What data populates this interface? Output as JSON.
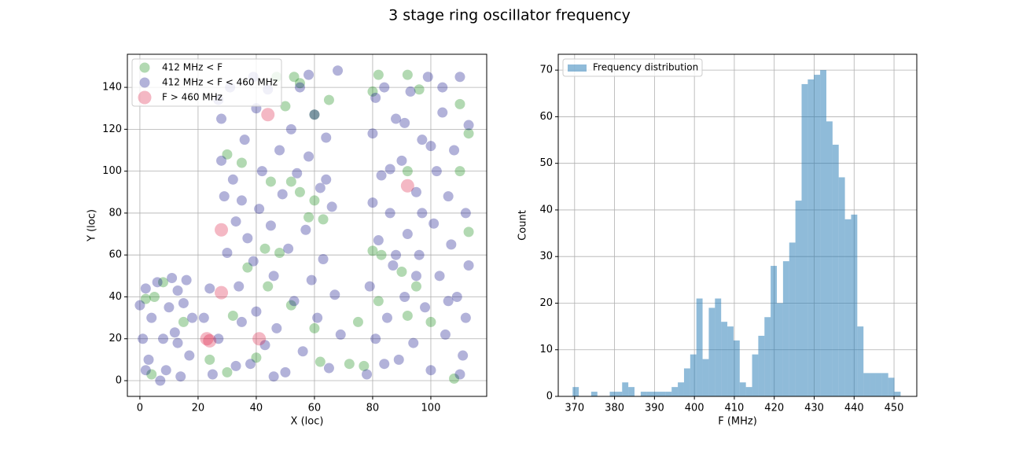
{
  "title": "3 stage ring oscillator frequency",
  "chart_data": [
    {
      "type": "scatter",
      "xlabel": "X (loc)",
      "ylabel": "Y (loc)",
      "xlim": [
        -4.3,
        119.2
      ],
      "ylim": [
        -7.5,
        155.8
      ],
      "xticks": [
        0,
        20,
        40,
        60,
        80,
        100
      ],
      "yticks": [
        0,
        20,
        40,
        60,
        80,
        100,
        120,
        140
      ],
      "grid": true,
      "legend": "upper left",
      "series": [
        {
          "name": "412 MHz < F",
          "color": "green",
          "alpha": 0.3,
          "size": 6.5,
          "x": [
            2,
            5,
            8,
            30,
            35,
            47,
            50,
            53,
            55,
            60,
            65,
            80,
            82,
            92,
            96,
            110,
            113,
            113,
            110,
            45,
            52,
            55,
            58,
            60,
            63,
            80,
            83,
            90,
            92,
            95,
            92,
            100,
            108,
            82,
            60,
            62,
            75,
            72,
            77,
            43,
            48,
            37,
            15,
            24,
            32,
            44,
            52,
            40,
            30,
            4
          ],
          "y": [
            39,
            40,
            47,
            108,
            104,
            145,
            131,
            145,
            142,
            127,
            134,
            138,
            146,
            146,
            139,
            132,
            118,
            71,
            100,
            95,
            95,
            90,
            78,
            86,
            77,
            62,
            60,
            52,
            100,
            45,
            31,
            28,
            1,
            38,
            25,
            9,
            28,
            8,
            7,
            63,
            61,
            54,
            28,
            10,
            31,
            45,
            36,
            11,
            4,
            3
          ]
        },
        {
          "name": "412 MHz < F < 460 MHz",
          "color": "navy",
          "alpha": 0.3,
          "size": 6.5,
          "x": [
            0,
            1,
            2,
            3,
            4,
            6,
            8,
            10,
            11,
            12,
            13,
            14,
            15,
            17,
            18,
            7,
            2,
            16,
            9,
            13,
            22,
            24,
            25,
            27,
            28,
            28,
            29,
            30,
            31,
            32,
            33,
            34,
            35,
            36,
            37,
            38,
            39,
            40,
            40,
            41,
            42,
            43,
            44,
            45,
            46,
            47,
            48,
            49,
            50,
            51,
            52,
            53,
            54,
            55,
            56,
            57,
            58,
            59,
            60,
            61,
            62,
            63,
            64,
            65,
            66,
            67,
            68,
            69,
            27,
            33,
            46,
            39,
            58,
            64,
            35,
            78,
            79,
            80,
            80,
            81,
            82,
            83,
            84,
            85,
            86,
            87,
            88,
            89,
            90,
            91,
            92,
            93,
            94,
            95,
            96,
            97,
            98,
            99,
            100,
            101,
            102,
            103,
            104,
            105,
            106,
            107,
            108,
            109,
            110,
            111,
            112,
            113,
            113,
            112,
            110,
            104,
            97,
            91,
            86,
            84,
            95,
            100,
            106,
            88,
            81
          ],
          "y": [
            36,
            20,
            44,
            10,
            30,
            47,
            20,
            35,
            49,
            23,
            43,
            2,
            37,
            12,
            30,
            0,
            5,
            48,
            5,
            18,
            30,
            44,
            3,
            20,
            125,
            105,
            88,
            61,
            140,
            96,
            76,
            45,
            28,
            115,
            68,
            8,
            57,
            130,
            33,
            82,
            100,
            17,
            139,
            74,
            50,
            25,
            110,
            89,
            4,
            63,
            120,
            38,
            99,
            140,
            14,
            72,
            107,
            48,
            127,
            30,
            92,
            58,
            116,
            6,
            83,
            41,
            148,
            22,
            134,
            7,
            2,
            145,
            146,
            96,
            86,
            3,
            45,
            118,
            85,
            20,
            67,
            98,
            140,
            30,
            80,
            55,
            125,
            10,
            105,
            40,
            70,
            138,
            18,
            90,
            60,
            115,
            35,
            145,
            5,
            75,
            100,
            50,
            128,
            22,
            88,
            65,
            110,
            40,
            145,
            12,
            80,
            55,
            122,
            30,
            3,
            140,
            80,
            123,
            101,
            8,
            50,
            112,
            38,
            60,
            135
          ]
        },
        {
          "name": "F > 460 MHz",
          "color": "crimson",
          "alpha": 0.3,
          "size": 8.5,
          "x": [
            28,
            28,
            44,
            92,
            41,
            23,
            24
          ],
          "y": [
            72,
            42,
            127,
            93,
            20,
            20,
            19
          ]
        }
      ]
    },
    {
      "type": "histogram",
      "xlabel": "F (MHz)",
      "ylabel": "Count",
      "xlim": [
        365.9,
        455.7
      ],
      "ylim": [
        0,
        73.4
      ],
      "xticks": [
        370,
        380,
        390,
        400,
        410,
        420,
        430,
        440,
        450
      ],
      "yticks": [
        0,
        10,
        20,
        30,
        40,
        50,
        60,
        70
      ],
      "grid": true,
      "legend": "upper left",
      "name": "Frequency distribution",
      "color": "#1f77b4",
      "alpha": 0.5,
      "bins": [
        369.5,
        371.05,
        372.6,
        374.15,
        375.7,
        377.25,
        378.8,
        380.35,
        381.9,
        383.45,
        385,
        386.55,
        388.1,
        389.65,
        391.2,
        392.75,
        394.3,
        395.85,
        397.4,
        398.95,
        400.5,
        402.05,
        403.6,
        405.15,
        406.7,
        408.25,
        409.8,
        411.35,
        412.9,
        414.45,
        416,
        417.55,
        419.1,
        420.65,
        422.2,
        423.75,
        425.3,
        426.85,
        428.4,
        429.95,
        431.5,
        433.05,
        434.6,
        436.15,
        437.7,
        439.25,
        440.8,
        442.35,
        443.9,
        445.45,
        447,
        448.55,
        450.1,
        451.65
      ],
      "values": [
        2,
        0,
        0,
        1,
        0,
        0,
        1,
        1,
        3,
        2,
        0,
        1,
        1,
        1,
        1,
        1,
        2,
        3,
        6,
        9,
        21,
        8,
        19,
        21,
        16,
        15,
        12,
        3,
        2,
        9,
        13,
        17,
        28,
        20,
        29,
        33,
        42,
        67,
        68,
        69,
        70,
        59,
        54,
        47,
        38,
        39,
        15,
        5,
        5,
        5,
        5,
        4,
        1
      ]
    }
  ]
}
